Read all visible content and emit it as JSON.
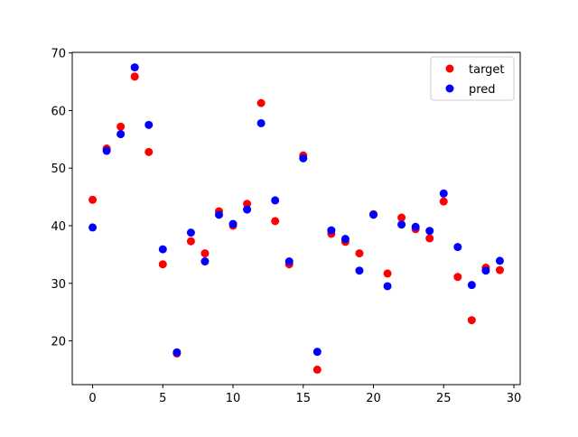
{
  "chart_data": {
    "type": "scatter",
    "x": [
      0,
      1,
      2,
      3,
      4,
      5,
      6,
      7,
      8,
      9,
      10,
      11,
      12,
      13,
      14,
      15,
      16,
      17,
      18,
      19,
      20,
      21,
      22,
      23,
      24,
      25,
      26,
      27,
      28,
      29
    ],
    "series": [
      {
        "name": "target",
        "color": "#ff0000",
        "values": [
          44.5,
          53.4,
          57.2,
          65.9,
          52.8,
          33.3,
          17.8,
          37.3,
          35.2,
          42.5,
          40.0,
          43.8,
          61.3,
          40.8,
          33.3,
          52.2,
          15.0,
          38.6,
          37.2,
          35.2,
          42.0,
          31.7,
          41.4,
          39.4,
          37.8,
          44.2,
          31.1,
          23.6,
          32.7,
          32.3
        ]
      },
      {
        "name": "pred",
        "color": "#0000ff",
        "values": [
          39.7,
          53.0,
          55.9,
          67.5,
          57.5,
          35.9,
          18.0,
          38.8,
          33.8,
          41.9,
          40.3,
          42.8,
          57.8,
          44.4,
          33.8,
          51.7,
          18.1,
          39.2,
          37.7,
          32.2,
          41.9,
          29.5,
          40.2,
          39.8,
          39.1,
          45.6,
          36.3,
          29.7,
          32.2,
          33.9
        ]
      }
    ],
    "xlim": [
      -1.45,
      30.45
    ],
    "xticks": [
      0,
      5,
      10,
      15,
      20,
      25,
      30
    ],
    "ylim": [
      12.4,
      70.1
    ],
    "yticks": [
      20,
      30,
      40,
      50,
      60,
      70
    ],
    "legend": "upper right"
  }
}
